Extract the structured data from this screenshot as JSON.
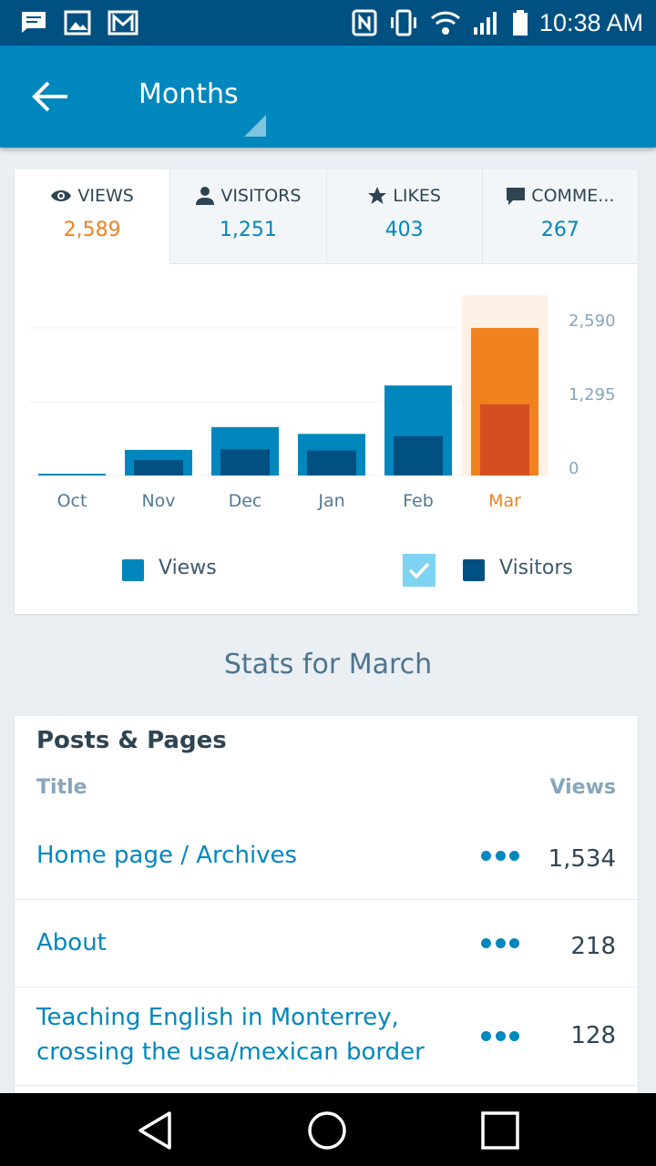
{
  "status_bar": {
    "time": "10:38 AM",
    "icons": [
      "message-icon",
      "image-icon",
      "gmail-icon",
      "nfc-icon",
      "vibrate-icon",
      "wifi-icon",
      "signal-icon",
      "battery-icon"
    ]
  },
  "app_bar": {
    "title": "Months"
  },
  "tabs": [
    {
      "label": "VIEWS",
      "value": "2,589",
      "icon": "eye-icon"
    },
    {
      "label": "VISITORS",
      "value": "1,251",
      "icon": "person-icon"
    },
    {
      "label": "LIKES",
      "value": "403",
      "icon": "star-icon"
    },
    {
      "label": "COMME...",
      "value": "267",
      "icon": "comment-icon"
    }
  ],
  "chart_data": {
    "type": "bar",
    "categories": [
      "Oct",
      "Nov",
      "Dec",
      "Jan",
      "Feb",
      "Mar"
    ],
    "series": [
      {
        "name": "Views",
        "values": [
          15,
          450,
          850,
          730,
          1580,
          2589
        ]
      },
      {
        "name": "Visitors",
        "values": [
          0,
          270,
          460,
          440,
          690,
          1251
        ]
      }
    ],
    "y_ticks": [
      "2,590",
      "1,295",
      "0"
    ],
    "ylim": [
      0,
      2590
    ],
    "highlighted_category": "Mar",
    "colors": {
      "views": "#0087be",
      "visitors": "#005082",
      "views_selected": "#f0821e",
      "visitors_selected": "#d54e21",
      "highlight_bg": "#fdf0e4"
    }
  },
  "legend": {
    "views_label": "Views",
    "visitors_label": "Visitors"
  },
  "section_title": "Stats for March",
  "posts_pages": {
    "title": "Posts & Pages",
    "col_title": "Title",
    "col_views": "Views",
    "rows": [
      {
        "title": "Home page / Archives",
        "views": "1,534"
      },
      {
        "title": "About",
        "views": "218"
      },
      {
        "title": "Teaching English in Monterrey, crossing the usa/mexican border",
        "views": "128"
      }
    ]
  },
  "nav_bar": {
    "icons": [
      "back-triangle-icon",
      "home-circle-icon",
      "recents-square-icon"
    ]
  }
}
